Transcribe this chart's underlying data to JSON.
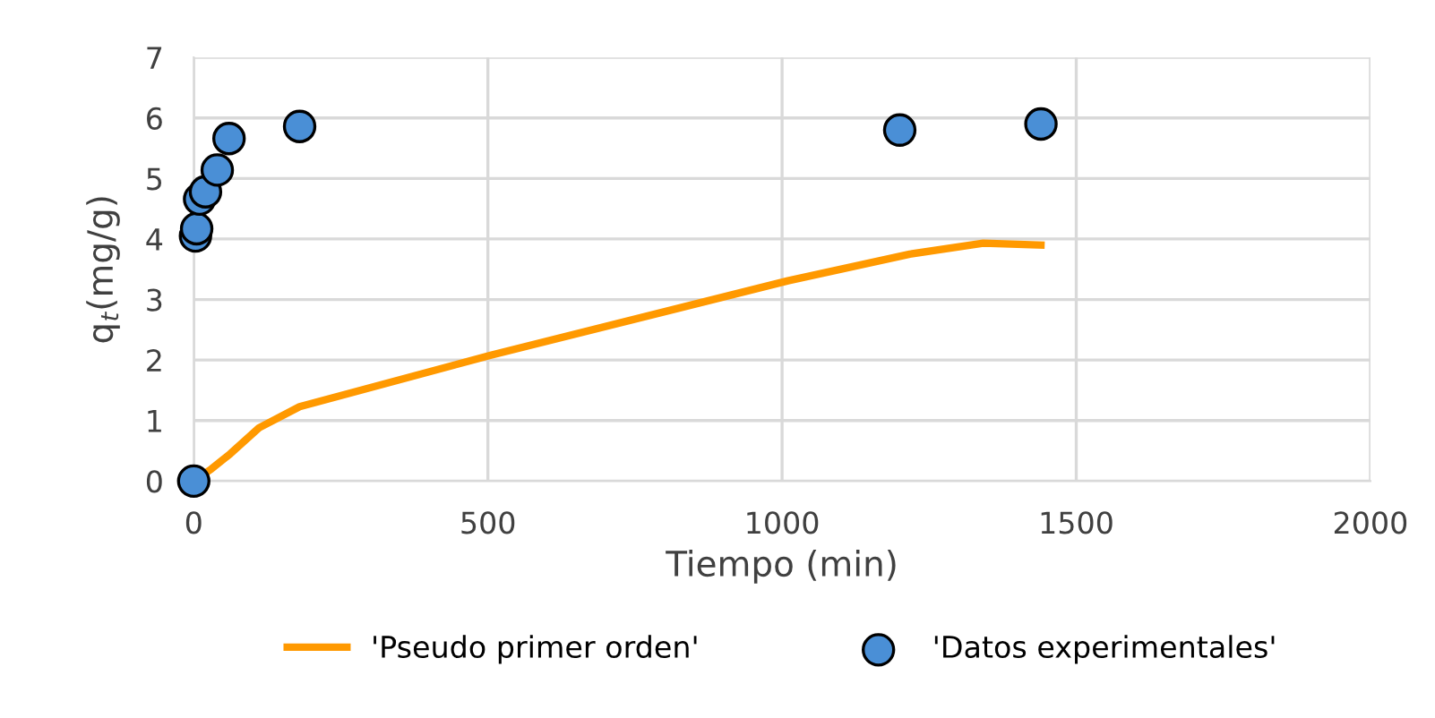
{
  "chart_data": {
    "type": "scatter",
    "xlabel": "Tiempo (min)",
    "ylabel": "q$_{t}$(mg/g)",
    "xlim": [
      0,
      2000
    ],
    "xticks": [
      0,
      500,
      1000,
      1500,
      2000
    ],
    "ylim": [
      0,
      7
    ],
    "yticks": [
      0,
      1,
      2,
      3,
      4,
      5,
      6,
      7
    ],
    "grid": true,
    "legend": "bottom",
    "series": [
      {
        "name": "'Pseudo primer orden'",
        "type": "line",
        "color": "#ff9900",
        "marker": "none",
        "x": [
          0,
          30,
          62,
          111,
          180,
          505,
          1010,
          1217,
          1342,
          1440
        ],
        "values": [
          0,
          0.2,
          0.45,
          0.88,
          1.23,
          2.08,
          3.31,
          3.75,
          3.93,
          3.9
        ]
      },
      {
        "name": "'Datos experimentales'",
        "color": "#4a8fd6",
        "marker": "circle",
        "x": [
          0,
          3,
          5,
          10,
          20,
          40,
          60,
          180,
          1200,
          1440
        ],
        "values": [
          0,
          4.05,
          4.17,
          4.66,
          4.78,
          5.14,
          5.66,
          5.86,
          5.8,
          5.9
        ]
      }
    ]
  }
}
